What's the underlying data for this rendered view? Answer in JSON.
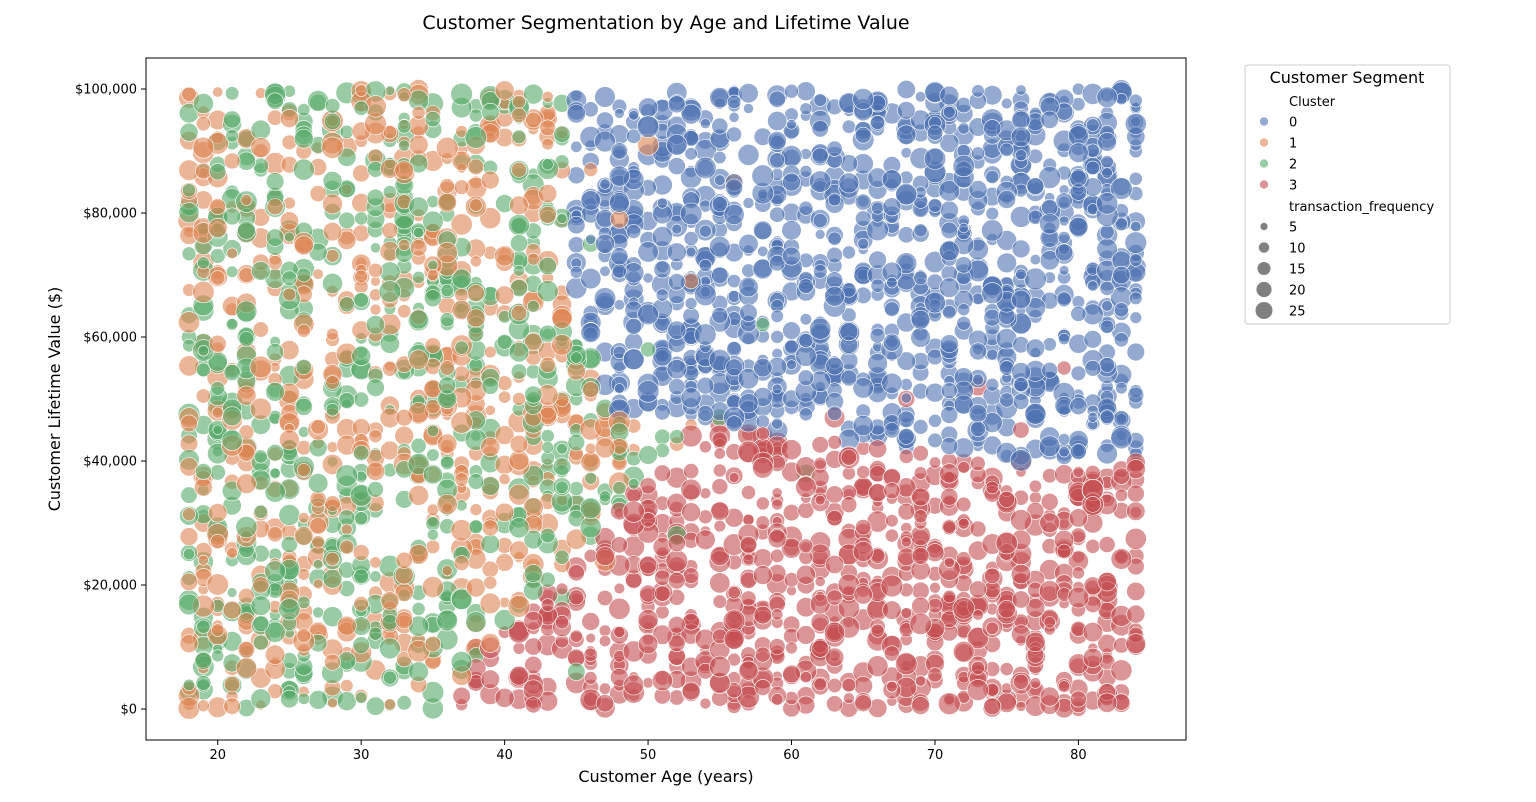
{
  "chart_data": {
    "type": "scatter",
    "title": "Customer Segmentation by Age and Lifetime Value",
    "xlabel": "Customer Age (years)",
    "ylabel": "Customer Lifetime Value ($)",
    "xlim": [
      15,
      87.5
    ],
    "ylim": [
      -5000,
      105000
    ],
    "x_ticks": [
      20,
      30,
      40,
      50,
      60,
      70,
      80
    ],
    "y_ticks": [
      0,
      20000,
      40000,
      60000,
      80000,
      100000
    ],
    "y_tick_labels": [
      "$0",
      "$20,000",
      "$40,000",
      "$60,000",
      "$80,000",
      "$100,000"
    ],
    "grid": false,
    "legend": {
      "title": "Customer Segment",
      "placement": "outside-top-right",
      "hue_title": "Cluster",
      "size_title": "transaction_frequency",
      "size_values": [
        5,
        10,
        15,
        20,
        25
      ]
    },
    "series": [
      {
        "name": "0",
        "color": "#4c72b0",
        "age_range": [
          39,
          84
        ],
        "value_range": [
          40000,
          100000
        ],
        "sample_points": [
          [
            45,
            96000,
            18
          ],
          [
            52,
            91000,
            22
          ],
          [
            56,
            99000,
            14
          ],
          [
            58,
            86000,
            25
          ],
          [
            60,
            93000,
            11
          ],
          [
            62,
            79000,
            20
          ],
          [
            64,
            88000,
            16
          ],
          [
            66,
            97000,
            23
          ],
          [
            68,
            72000,
            12
          ],
          [
            70,
            84000,
            19
          ],
          [
            72,
            90000,
            9
          ],
          [
            74,
            68000,
            24
          ],
          [
            76,
            95000,
            17
          ],
          [
            78,
            76000,
            13
          ],
          [
            80,
            86000,
            21
          ],
          [
            82,
            62000,
            15
          ],
          [
            84,
            93000,
            8
          ],
          [
            71,
            58000,
            18
          ],
          [
            77,
            52000,
            22
          ],
          [
            81,
            46000,
            10
          ],
          [
            55,
            74000,
            14
          ],
          [
            63,
            65000,
            26
          ],
          [
            67,
            61000,
            12
          ],
          [
            74,
            99000,
            20
          ],
          [
            83,
            70000,
            16
          ],
          [
            59,
            82000,
            7
          ],
          [
            69,
            95000,
            21
          ],
          [
            75,
            55000,
            11
          ]
        ]
      },
      {
        "name": "1",
        "color": "#dd8452",
        "age_range": [
          18,
          58
        ],
        "value_range": [
          3000,
          100000
        ],
        "sample_points": [
          [
            18,
            82000,
            15
          ],
          [
            20,
            95000,
            20
          ],
          [
            22,
            70000,
            12
          ],
          [
            24,
            88000,
            25
          ],
          [
            26,
            61000,
            9
          ],
          [
            28,
            77000,
            18
          ],
          [
            30,
            98000,
            22
          ],
          [
            32,
            66000,
            14
          ],
          [
            34,
            91000,
            19
          ],
          [
            36,
            55000,
            11
          ],
          [
            38,
            84000,
            24
          ],
          [
            40,
            72000,
            16
          ],
          [
            42,
            95000,
            13
          ],
          [
            44,
            63000,
            21
          ],
          [
            46,
            87000,
            10
          ],
          [
            48,
            79000,
            17
          ],
          [
            50,
            91000,
            23
          ],
          [
            53,
            69000,
            12
          ],
          [
            56,
            85000,
            15
          ],
          [
            19,
            30000,
            18
          ],
          [
            23,
            20000,
            14
          ],
          [
            27,
            12000,
            22
          ],
          [
            31,
            44000,
            9
          ],
          [
            35,
            8000,
            16
          ],
          [
            39,
            36000,
            20
          ],
          [
            43,
            48000,
            11
          ],
          [
            47,
            24000,
            25
          ],
          [
            21,
            4000,
            13
          ]
        ]
      },
      {
        "name": "2",
        "color": "#55a868",
        "age_range": [
          18,
          64
        ],
        "value_range": [
          0,
          100000
        ],
        "sample_points": [
          [
            18,
            60000,
            12
          ],
          [
            20,
            45000,
            19
          ],
          [
            22,
            92000,
            15
          ],
          [
            24,
            35000,
            22
          ],
          [
            26,
            70000,
            10
          ],
          [
            28,
            25000,
            17
          ],
          [
            30,
            55000,
            24
          ],
          [
            32,
            14000,
            13
          ],
          [
            34,
            81000,
            20
          ],
          [
            36,
            40000,
            9
          ],
          [
            38,
            65000,
            16
          ],
          [
            40,
            30000,
            23
          ],
          [
            42,
            50000,
            11
          ],
          [
            44,
            18000,
            18
          ],
          [
            46,
            75000,
            14
          ],
          [
            48,
            42000,
            21
          ],
          [
            50,
            58000,
            12
          ],
          [
            52,
            28000,
            19
          ],
          [
            55,
            47000,
            15
          ],
          [
            58,
            62000,
            10
          ],
          [
            61,
            38000,
            17
          ],
          [
            19,
            8000,
            14
          ],
          [
            25,
            3000,
            20
          ],
          [
            33,
            1000,
            11
          ],
          [
            37,
            97000,
            22
          ],
          [
            41,
            86000,
            13
          ],
          [
            29,
            89000,
            18
          ],
          [
            45,
            6000,
            16
          ]
        ]
      },
      {
        "name": "3",
        "color": "#c44e52",
        "age_range": [
          37,
          84
        ],
        "value_range": [
          0,
          56000
        ],
        "sample_points": [
          [
            38,
            10000,
            16
          ],
          [
            42,
            4000,
            21
          ],
          [
            45,
            18000,
            12
          ],
          [
            48,
            7000,
            19
          ],
          [
            50,
            36000,
            14
          ],
          [
            52,
            22000,
            25
          ],
          [
            54,
            31000,
            10
          ],
          [
            56,
            12000,
            18
          ],
          [
            58,
            44000,
            22
          ],
          [
            60,
            26000,
            13
          ],
          [
            62,
            5000,
            20
          ],
          [
            64,
            38000,
            9
          ],
          [
            66,
            16000,
            24
          ],
          [
            68,
            50000,
            15
          ],
          [
            70,
            8000,
            17
          ],
          [
            72,
            33000,
            11
          ],
          [
            74,
            21000,
            23
          ],
          [
            76,
            45000,
            14
          ],
          [
            78,
            2000,
            19
          ],
          [
            80,
            28000,
            12
          ],
          [
            82,
            14000,
            21
          ],
          [
            84,
            37000,
            16
          ],
          [
            73,
            52000,
            18
          ],
          [
            79,
            55000,
            10
          ],
          [
            63,
            47000,
            22
          ],
          [
            69,
            30000,
            8
          ],
          [
            75,
            1000,
            20
          ],
          [
            57,
            3000,
            15
          ]
        ]
      }
    ]
  }
}
